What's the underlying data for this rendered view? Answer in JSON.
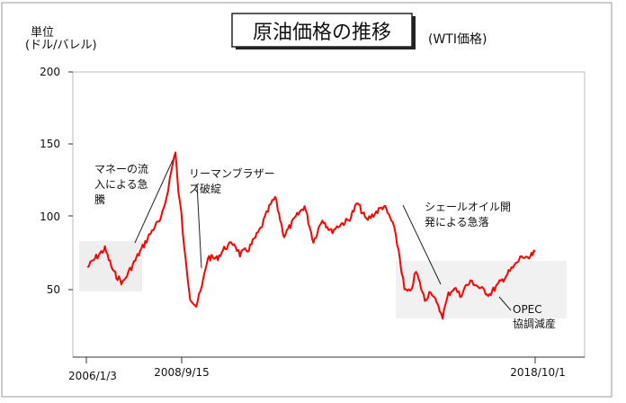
{
  "unit_label": [
    "単位",
    "(ドル/バレル)"
  ],
  "title": "原油価格の推移",
  "subtitle": "(WTI価格)",
  "x_tick_labels": [
    "2006/1/3",
    "2008/9/15",
    "2018/10/1"
  ],
  "y_tick_labels": [
    "200",
    "150",
    "100",
    "50"
  ],
  "annotations": [
    {
      "lines": [
        "マネーの流",
        "入による急",
        "騰"
      ]
    },
    {
      "lines": [
        "リーマンブラザー",
        "ズ破綻"
      ]
    },
    {
      "lines": [
        "シェールオイル開",
        "発による急落"
      ]
    },
    {
      "lines": [
        "OPEC",
        "協調減産"
      ]
    }
  ],
  "chart_data": {
    "type": "line",
    "title": "原油価格の推移",
    "subtitle": "(WTI価格)",
    "ylabel": "単位 (ドル/バレル)",
    "ylim": [
      0,
      200
    ],
    "yticks": [
      50,
      100,
      150,
      200
    ],
    "xrange": [
      "2006-01-03",
      "2018-10-01"
    ],
    "xticks": [
      "2006-01-03",
      "2008-09-15",
      "2018-10-01"
    ],
    "grid": false,
    "line_color": "#ff0000",
    "series": [
      {
        "points": [
          [
            "2006-01",
            63
          ],
          [
            "2006-04",
            70
          ],
          [
            "2006-07",
            76
          ],
          [
            "2006-10",
            59
          ],
          [
            "2007-01",
            52
          ],
          [
            "2007-04",
            63
          ],
          [
            "2007-07",
            74
          ],
          [
            "2007-10",
            85
          ],
          [
            "2007-12",
            92
          ],
          [
            "2008-02",
            96
          ],
          [
            "2008-04",
            113
          ],
          [
            "2008-06",
            135
          ],
          [
            "2008-07",
            145
          ],
          [
            "2008-08",
            115
          ],
          [
            "2008-09-15",
            100
          ],
          [
            "2008-10",
            75
          ],
          [
            "2008-12",
            42
          ],
          [
            "2009-02",
            36
          ],
          [
            "2009-04",
            49
          ],
          [
            "2009-06",
            70
          ],
          [
            "2009-09",
            69
          ],
          [
            "2009-12",
            77
          ],
          [
            "2010-03",
            80
          ],
          [
            "2010-05",
            72
          ],
          [
            "2010-08",
            76
          ],
          [
            "2010-12",
            90
          ],
          [
            "2011-03",
            105
          ],
          [
            "2011-05",
            112
          ],
          [
            "2011-08",
            85
          ],
          [
            "2011-12",
            98
          ],
          [
            "2012-03",
            106
          ],
          [
            "2012-06",
            81
          ],
          [
            "2012-09",
            97
          ],
          [
            "2012-12",
            88
          ],
          [
            "2013-03",
            93
          ],
          [
            "2013-06",
            96
          ],
          [
            "2013-09",
            108
          ],
          [
            "2013-12",
            96
          ],
          [
            "2014-03",
            101
          ],
          [
            "2014-06",
            106
          ],
          [
            "2014-09",
            94
          ],
          [
            "2014-11",
            75
          ],
          [
            "2015-01",
            47
          ],
          [
            "2015-03",
            45
          ],
          [
            "2015-05",
            60
          ],
          [
            "2015-08",
            40
          ],
          [
            "2015-10",
            47
          ],
          [
            "2015-12",
            37
          ],
          [
            "2016-02",
            29
          ],
          [
            "2016-04",
            44
          ],
          [
            "2016-06",
            49
          ],
          [
            "2016-08",
            43
          ],
          [
            "2016-10",
            50
          ],
          [
            "2016-12",
            53
          ],
          [
            "2017-03",
            48
          ],
          [
            "2017-06",
            44
          ],
          [
            "2017-09",
            51
          ],
          [
            "2017-12",
            58
          ],
          [
            "2018-03",
            65
          ],
          [
            "2018-05",
            71
          ],
          [
            "2018-07",
            68
          ],
          [
            "2018-10-01",
            74
          ]
        ]
      }
    ]
  }
}
